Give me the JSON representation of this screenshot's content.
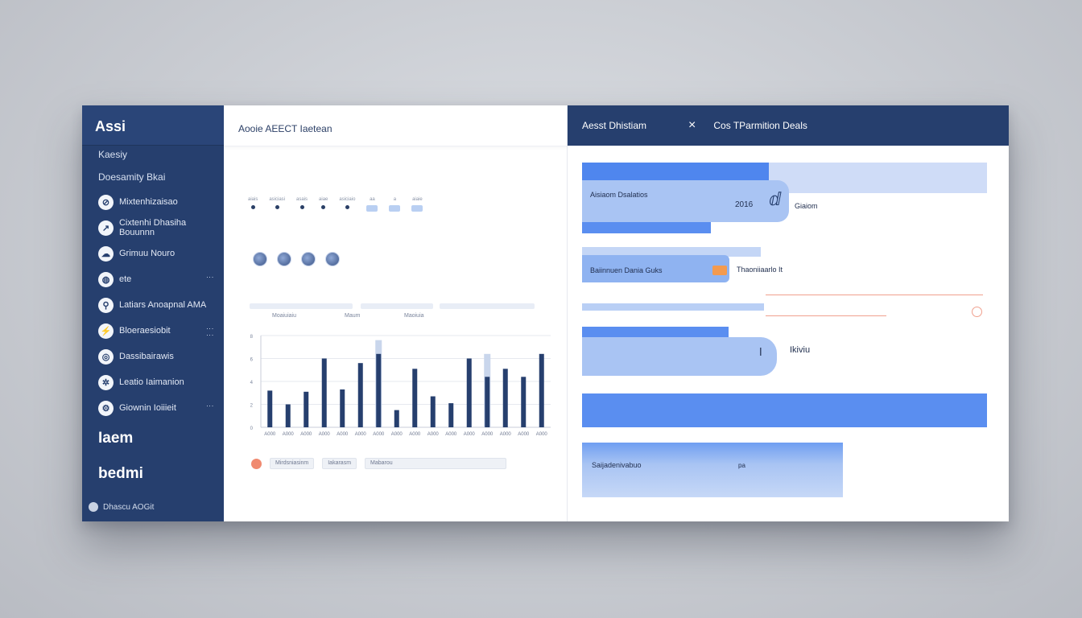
{
  "sidebar": {
    "title": "Assi",
    "subtitle": "Kaesiy",
    "subtitle2": "Doesamity Bkai",
    "items": [
      {
        "label": "Mixtenhizaisao",
        "icon": "link-icon"
      },
      {
        "label": "Cixtenhi Dhasiha Bouunnn",
        "icon": "chart-icon"
      },
      {
        "label": "Grimuu Nouro",
        "icon": "cloud-icon"
      },
      {
        "label": "ete",
        "icon": "globe-icon"
      },
      {
        "label": "Latiars Anoapnal AMA",
        "icon": "lock-icon"
      },
      {
        "label": "Bloeraesiobit",
        "icon": "plug-icon"
      },
      {
        "label": "Dassibairawis",
        "icon": "target-icon"
      },
      {
        "label": "Leatio Iaimanion",
        "icon": "settings-icon"
      },
      {
        "label": "Giownin Ioiiieit",
        "icon": "gear-icon"
      }
    ],
    "big1": "Iaem",
    "big2": "bedmi",
    "footer": "Dhascu AOGit"
  },
  "middle": {
    "title": "Aooie AEECT Iaetean",
    "legend_labels": [
      "aiais",
      "asiciasi",
      "asais",
      "aiae",
      "asiciaio",
      "aa",
      "a",
      "aiaie"
    ],
    "faint_labels": [
      "Moaiuiaiu",
      "Maum",
      "Maoiuia"
    ],
    "chips": [
      "Mirdsniasinm",
      "Iakarasm",
      "Mabarou"
    ]
  },
  "chart_data": {
    "type": "bar",
    "categories": [
      "A000",
      "A000",
      "A000",
      "A000",
      "A000",
      "A000",
      "A000",
      "A000",
      "A000",
      "A000",
      "A000",
      "A000",
      "A000",
      "A000",
      "A000",
      "A000"
    ],
    "series": [
      {
        "values": [
          3.2,
          2.0,
          3.1,
          6.0,
          3.3,
          5.6,
          6.4,
          1.5,
          5.1,
          2.7,
          2.1,
          6.0,
          4.4,
          5.1,
          4.4,
          6.4
        ]
      },
      {
        "values": [
          0,
          0,
          0,
          0,
          0,
          0,
          7.6,
          0,
          0,
          0,
          0,
          0,
          6.4,
          0,
          0,
          0
        ]
      }
    ],
    "ylim": [
      0,
      8
    ],
    "yticks": [
      "8",
      "6",
      "4",
      "2",
      "0"
    ],
    "grid": true,
    "colors": [
      "#263f6e",
      "#c9d6ec"
    ]
  },
  "right": {
    "header_title": "Aesst Dhistiam",
    "close_icon": "×",
    "header_tab": "Cos TParmition Deals",
    "row1_label": "Aisiaom Dsalatios",
    "row1_value": "2016",
    "row1_side": "Giaiom",
    "row2_label": "Baiinnuen Dania Guks",
    "row2_side": "Thaoniiaarlo It",
    "row4_side": "Ikiviu",
    "row5_label": "Saijadenivabuo",
    "row5_value": "pa"
  },
  "colors": {
    "navy": "#263f6e",
    "accent_blue": "#5a8ef0",
    "light_blue": "#a9c4f3",
    "orange": "#f39a4f"
  }
}
